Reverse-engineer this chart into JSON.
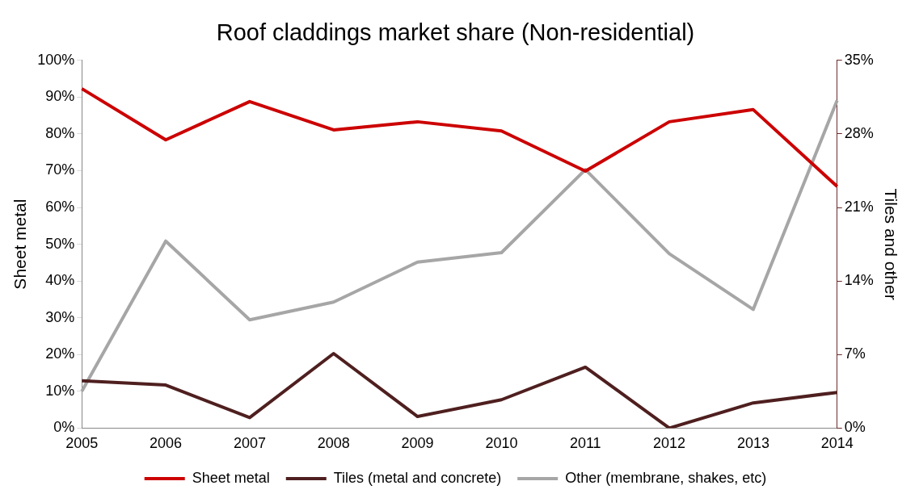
{
  "chart_data": {
    "type": "line",
    "title": "Roof claddings market share (Non-residential)",
    "ylabel": "Sheet metal",
    "y2label": "Tiles and other",
    "categories": [
      "2005",
      "2006",
      "2007",
      "2008",
      "2009",
      "2010",
      "2011",
      "2012",
      "2013",
      "2014"
    ],
    "series": [
      {
        "name": "Sheet metal",
        "color": "#cc0000",
        "values": [
          92.3,
          78.4,
          88.8,
          81.1,
          83.3,
          80.8,
          69.9,
          83.3,
          86.6,
          65.7
        ]
      },
      {
        "name": "Tiles (metal and concrete)",
        "color": "#4f1f1f",
        "axis": "y2",
        "values": [
          4.5,
          4.1,
          1.0,
          7.1,
          1.1,
          2.7,
          5.8,
          0,
          2.4,
          3.4
        ]
      },
      {
        "name": "Other (membrane, shakes, etc)",
        "color": "#a6a6a6",
        "axis": "y2",
        "values": [
          3.5,
          17.8,
          10.3,
          12.0,
          15.8,
          16.7,
          24.6,
          16.6,
          11.3,
          31.2
        ]
      }
    ],
    "ylim": [
      0,
      100
    ],
    "yticks": [
      {
        "value": 0,
        "label": "0%"
      },
      {
        "value": 10,
        "label": "10%"
      },
      {
        "value": 20,
        "label": "20%"
      },
      {
        "value": 30,
        "label": "30%"
      },
      {
        "value": 40,
        "label": "40%"
      },
      {
        "value": 50,
        "label": "50%"
      },
      {
        "value": 60,
        "label": "60%"
      },
      {
        "value": 70,
        "label": "70%"
      },
      {
        "value": 80,
        "label": "80%"
      },
      {
        "value": 90,
        "label": "90%"
      },
      {
        "value": 100,
        "label": "100%"
      }
    ],
    "y2lim": [
      0,
      35
    ],
    "y2ticks": [
      {
        "value": 0,
        "label": "0%"
      },
      {
        "value": 7,
        "label": "7%"
      },
      {
        "value": 14,
        "label": "14%"
      },
      {
        "value": 21,
        "label": "21%"
      },
      {
        "value": 28,
        "label": "28%"
      },
      {
        "value": 35,
        "label": "35%"
      }
    ],
    "grid": false,
    "legend": "bottom",
    "marker": "none",
    "line_style": "solid"
  }
}
